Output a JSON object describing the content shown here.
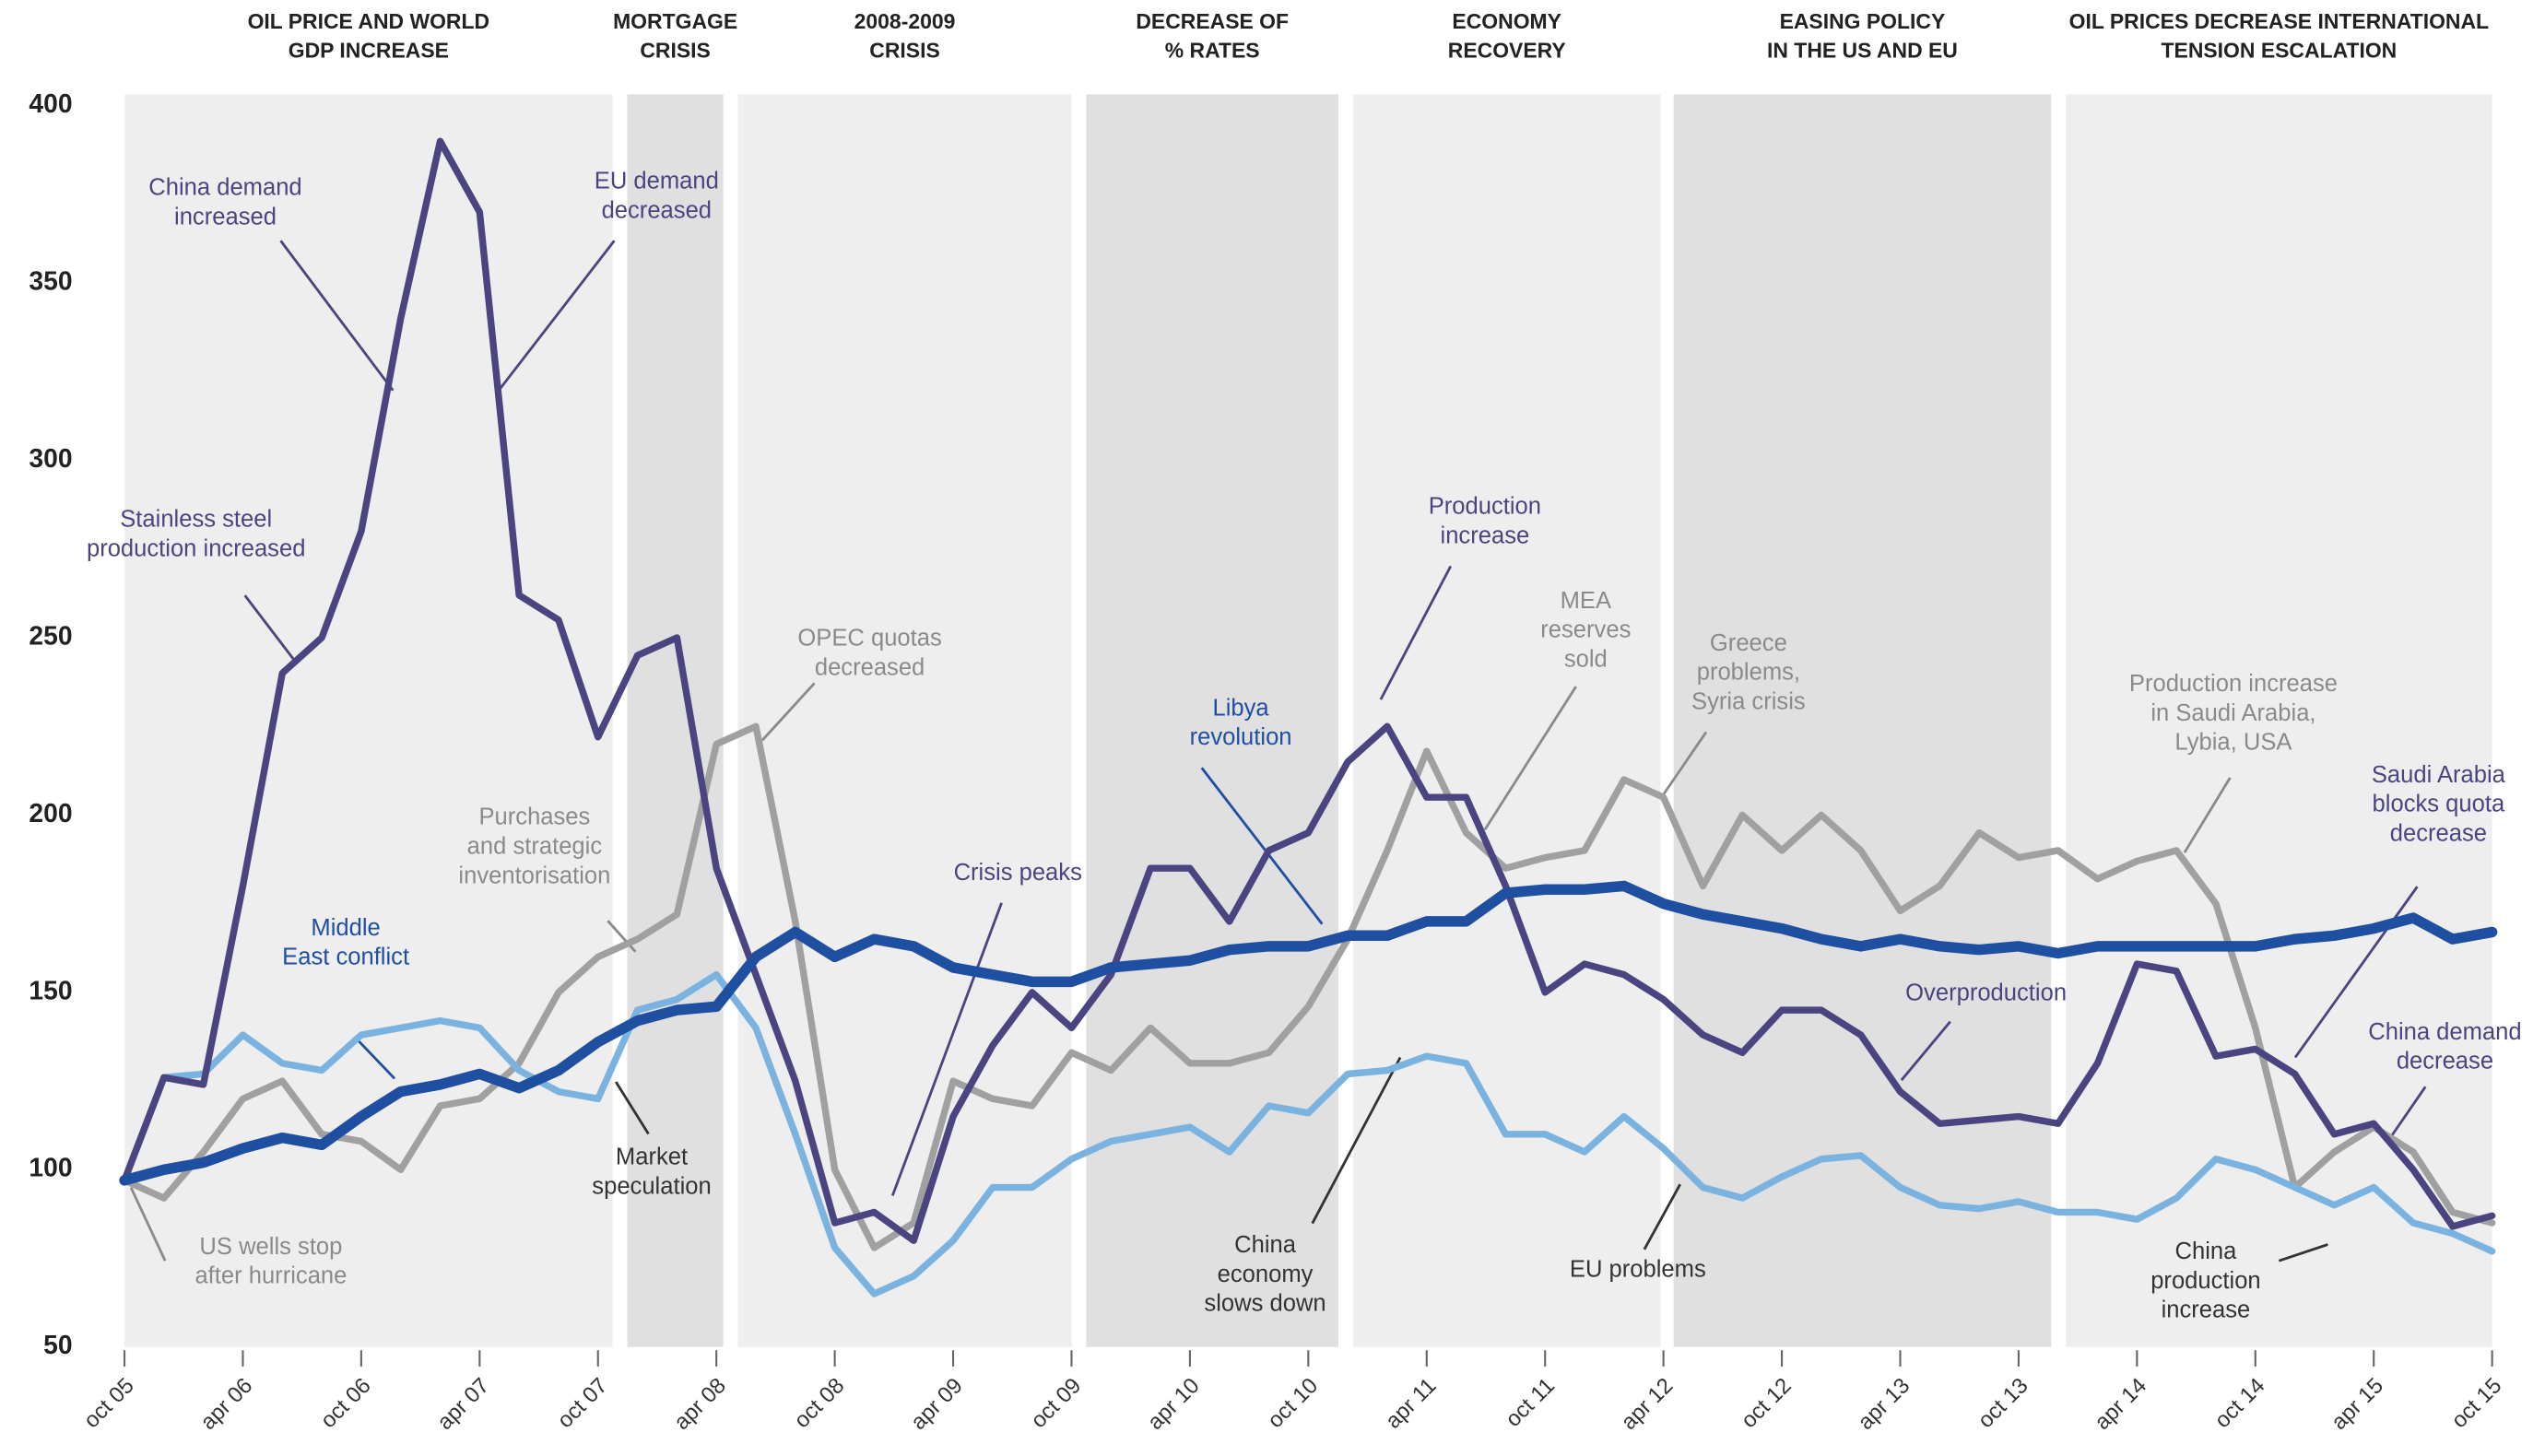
{
  "chart_data": {
    "type": "line",
    "periods": [
      [
        "OIL PRICE AND WORLD",
        "GDP INCREASE"
      ],
      [
        "MORTGAGE",
        "CRISIS"
      ],
      [
        "2008-2009",
        "CRISIS"
      ],
      [
        "DECREASE OF",
        "% RATES"
      ],
      [
        "ECONOMY",
        "RECOVERY"
      ],
      [
        "EASING POLICY",
        "IN THE US AND EU"
      ],
      [
        "OIL PRICES DECREASE INTERNATIONAL",
        "TENSION ESCALATION"
      ]
    ],
    "categories": [
      "oct 05",
      null,
      null,
      "apr 06",
      null,
      null,
      "oct 06",
      null,
      null,
      "apr 07",
      null,
      null,
      "oct 07",
      null,
      null,
      "apr 08",
      null,
      null,
      "oct 08",
      null,
      null,
      "apr 09",
      null,
      null,
      "oct 09",
      null,
      null,
      "apr 10",
      null,
      null,
      "oct 10",
      null,
      null,
      "apr 11",
      null,
      null,
      "oct 11",
      null,
      null,
      "apr 12",
      null,
      null,
      "oct 12",
      null,
      null,
      "apr 13",
      null,
      null,
      "oct 13",
      null,
      null,
      "apr 14",
      null,
      null,
      "oct 14",
      null,
      null,
      "apr 15",
      null,
      null,
      "oct 15"
    ],
    "series": [
      {
        "color": "#a0a0a0",
        "values": [
          97,
          92,
          105,
          120,
          125,
          110,
          108,
          100,
          118,
          120,
          130,
          150,
          160,
          165,
          172,
          220,
          225,
          170,
          100,
          78,
          85,
          125,
          120,
          118,
          133,
          128,
          140,
          130,
          130,
          133,
          146,
          165,
          190,
          218,
          195,
          185,
          188,
          190,
          210,
          205,
          180,
          200,
          190,
          200,
          190,
          173,
          180,
          195,
          188,
          190,
          182,
          187,
          190,
          175,
          140,
          95,
          105,
          112,
          105,
          88,
          85
        ]
      },
      {
        "color": "#7ab3e0",
        "values": [
          97,
          126,
          127,
          138,
          130,
          128,
          138,
          140,
          142,
          140,
          128,
          122,
          120,
          145,
          148,
          155,
          140,
          110,
          78,
          65,
          70,
          80,
          95,
          95,
          103,
          108,
          110,
          112,
          105,
          118,
          116,
          127,
          128,
          132,
          130,
          110,
          110,
          105,
          115,
          106,
          95,
          92,
          98,
          103,
          104,
          95,
          90,
          89,
          91,
          88,
          88,
          86,
          92,
          103,
          100,
          95,
          90,
          95,
          85,
          82,
          77
        ]
      },
      {
        "color": "#4a4580",
        "values": [
          97,
          126,
          124,
          180,
          240,
          250,
          280,
          340,
          390,
          370,
          262,
          255,
          222,
          245,
          250,
          185,
          155,
          125,
          85,
          88,
          80,
          115,
          135,
          150,
          140,
          155,
          185,
          185,
          170,
          190,
          195,
          215,
          225,
          205,
          205,
          180,
          150,
          158,
          155,
          148,
          138,
          133,
          145,
          145,
          138,
          122,
          113,
          114,
          115,
          113,
          130,
          158,
          156,
          132,
          134,
          127,
          110,
          113,
          100,
          84,
          87
        ]
      },
      {
        "color": "#1f4fa0",
        "values": [
          97,
          100,
          102,
          106,
          109,
          107,
          115,
          122,
          124,
          127,
          123,
          128,
          136,
          142,
          145,
          146,
          160,
          167,
          160,
          165,
          163,
          157,
          155,
          153,
          153,
          157,
          158,
          159,
          162,
          163,
          163,
          166,
          166,
          170,
          170,
          178,
          179,
          179,
          180,
          175,
          172,
          170,
          168,
          165,
          163,
          165,
          163,
          162,
          163,
          161,
          163,
          163,
          163,
          163,
          163,
          165,
          166,
          168,
          171,
          165,
          167
        ]
      }
    ],
    "ylim": [
      50,
      400
    ],
    "yticks": [
      50,
      100,
      150,
      200,
      250,
      300,
      350,
      400
    ],
    "annotations": [
      {
        "lines": [
          "China demand",
          "increased"
        ],
        "color": "#4a4580"
      },
      {
        "lines": [
          "EU demand",
          "decreased"
        ],
        "color": "#4a4580"
      },
      {
        "lines": [
          "Stainless steel",
          "production increased"
        ],
        "color": "#4a4580"
      },
      {
        "lines": [
          "Purchases",
          "and strategic",
          "inventorisation"
        ],
        "color": "#8a8a8a"
      },
      {
        "lines": [
          "Middle",
          "East conflict"
        ],
        "color": "#1f4fa0"
      },
      {
        "lines": [
          "US wells stop",
          "after hurricane"
        ],
        "color": "#8a8a8a"
      },
      {
        "lines": [
          "Market",
          "speculation"
        ],
        "color": "#333333"
      },
      {
        "lines": [
          "OPEC quotas",
          "decreased"
        ],
        "color": "#8a8a8a"
      },
      {
        "lines": [
          "Crisis peaks"
        ],
        "color": "#4a4580"
      },
      {
        "lines": [
          "Libya",
          "revolution"
        ],
        "color": "#1f4fa0"
      },
      {
        "lines": [
          "Production",
          "increase"
        ],
        "color": "#4a4580"
      },
      {
        "lines": [
          "MEA",
          "reserves",
          "sold"
        ],
        "color": "#8a8a8a"
      },
      {
        "lines": [
          "Greece",
          "problems,",
          "Syria crisis"
        ],
        "color": "#8a8a8a"
      },
      {
        "lines": [
          "China",
          "economy",
          "slows down"
        ],
        "color": "#333333"
      },
      {
        "lines": [
          "EU problems"
        ],
        "color": "#333333"
      },
      {
        "lines": [
          "Overproduction"
        ],
        "color": "#4a4580"
      },
      {
        "lines": [
          "Production increase",
          "in Saudi Arabia,",
          "Lybia, USA"
        ],
        "color": "#8a8a8a"
      },
      {
        "lines": [
          "Saudi Arabia",
          "blocks quota",
          "decrease"
        ],
        "color": "#4a4580"
      },
      {
        "lines": [
          "China demand",
          "decrease"
        ],
        "color": "#4a4580"
      },
      {
        "lines": [
          "China",
          "production",
          "increase"
        ],
        "color": "#333333"
      }
    ]
  }
}
